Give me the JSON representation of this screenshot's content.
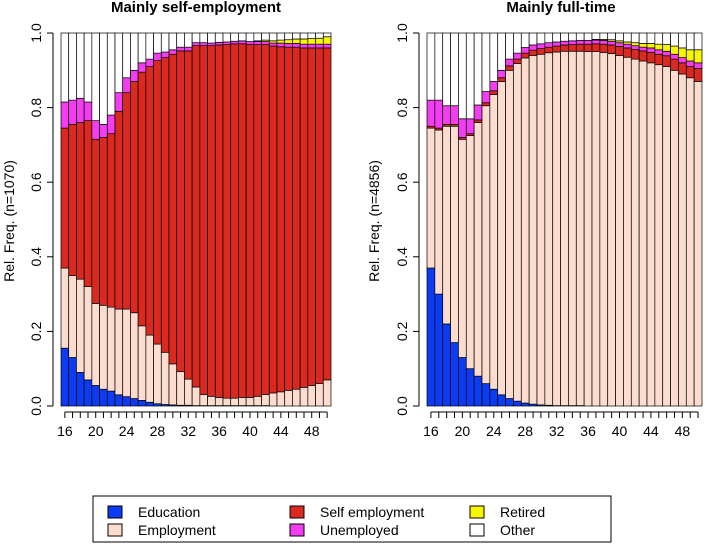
{
  "chart_data": [
    {
      "type": "bar",
      "stacked": true,
      "title": "Mainly self-employment",
      "ylabel": "Rel. Freq. (n=1070)",
      "xlabel": "",
      "ylim": [
        0,
        1
      ],
      "yticks": [
        "0.0",
        "0.2",
        "0.4",
        "0.6",
        "0.8",
        "1.0"
      ],
      "xtick_labels": [
        "16",
        "20",
        "24",
        "28",
        "32",
        "36",
        "40",
        "44",
        "48"
      ],
      "categories": [
        16,
        17,
        18,
        19,
        20,
        21,
        22,
        23,
        24,
        25,
        26,
        27,
        28,
        29,
        30,
        31,
        32,
        33,
        34,
        35,
        36,
        37,
        38,
        39,
        40,
        41,
        42,
        43,
        44,
        45,
        46,
        47,
        48,
        49,
        50
      ],
      "series": [
        {
          "name": "Education",
          "values": [
            0.155,
            0.13,
            0.09,
            0.07,
            0.055,
            0.045,
            0.04,
            0.03,
            0.025,
            0.02,
            0.015,
            0.01,
            0.006,
            0.004,
            0.003,
            0.002,
            0.002,
            0.001,
            0.001,
            0.001,
            0.001,
            0.001,
            0.001,
            0.001,
            0.001,
            0.001,
            0.001,
            0,
            0,
            0,
            0,
            0,
            0,
            0,
            0
          ]
        },
        {
          "name": "Employment",
          "values": [
            0.215,
            0.22,
            0.25,
            0.25,
            0.22,
            0.225,
            0.225,
            0.23,
            0.235,
            0.23,
            0.2,
            0.18,
            0.16,
            0.14,
            0.11,
            0.09,
            0.07,
            0.05,
            0.03,
            0.025,
            0.022,
            0.02,
            0.02,
            0.022,
            0.022,
            0.025,
            0.03,
            0.035,
            0.038,
            0.042,
            0.045,
            0.05,
            0.055,
            0.06,
            0.07
          ]
        },
        {
          "name": "Self employment",
          "values": [
            0.375,
            0.405,
            0.42,
            0.445,
            0.44,
            0.45,
            0.465,
            0.53,
            0.58,
            0.62,
            0.68,
            0.72,
            0.76,
            0.79,
            0.83,
            0.86,
            0.88,
            0.915,
            0.935,
            0.94,
            0.945,
            0.948,
            0.95,
            0.948,
            0.946,
            0.943,
            0.938,
            0.93,
            0.925,
            0.92,
            0.917,
            0.91,
            0.905,
            0.9,
            0.89
          ]
        },
        {
          "name": "Unemployed",
          "values": [
            0.07,
            0.065,
            0.065,
            0.05,
            0.05,
            0.035,
            0.05,
            0.05,
            0.04,
            0.03,
            0.025,
            0.02,
            0.02,
            0.015,
            0.012,
            0.01,
            0.01,
            0.008,
            0.008,
            0.007,
            0.007,
            0.007,
            0.007,
            0.008,
            0.008,
            0.008,
            0.008,
            0.008,
            0.01,
            0.01,
            0.01,
            0.01,
            0.01,
            0.01,
            0.01
          ]
        },
        {
          "name": "Retired",
          "values": [
            0,
            0,
            0,
            0,
            0,
            0,
            0,
            0,
            0,
            0,
            0,
            0,
            0,
            0,
            0,
            0,
            0,
            0,
            0,
            0,
            0,
            0,
            0,
            0,
            0,
            0.002,
            0.004,
            0.006,
            0.008,
            0.01,
            0.012,
            0.014,
            0.015,
            0.016,
            0.02
          ]
        },
        {
          "name": "Other",
          "values": [
            0.185,
            0.18,
            0.175,
            0.185,
            0.235,
            0.245,
            0.22,
            0.16,
            0.12,
            0.1,
            0.08,
            0.07,
            0.054,
            0.051,
            0.045,
            0.038,
            0.038,
            0.026,
            0.026,
            0.027,
            0.025,
            0.024,
            0.022,
            0.021,
            0.023,
            0.021,
            0.019,
            0.021,
            0.019,
            0.018,
            0.016,
            0.016,
            0.015,
            0.014,
            0.01
          ]
        }
      ]
    },
    {
      "type": "bar",
      "stacked": true,
      "title": "Mainly full-time",
      "ylabel": "Rel. Freq. (n=4856)",
      "xlabel": "",
      "ylim": [
        0,
        1
      ],
      "yticks": [
        "0.0",
        "0.2",
        "0.4",
        "0.6",
        "0.8",
        "1.0"
      ],
      "xtick_labels": [
        "16",
        "20",
        "24",
        "28",
        "32",
        "36",
        "40",
        "44",
        "48"
      ],
      "categories": [
        16,
        17,
        18,
        19,
        20,
        21,
        22,
        23,
        24,
        25,
        26,
        27,
        28,
        29,
        30,
        31,
        32,
        33,
        34,
        35,
        36,
        37,
        38,
        39,
        40,
        41,
        42,
        43,
        44,
        45,
        46,
        47,
        48,
        49,
        50
      ],
      "series": [
        {
          "name": "Education",
          "values": [
            0.37,
            0.3,
            0.22,
            0.17,
            0.13,
            0.1,
            0.08,
            0.06,
            0.045,
            0.03,
            0.02,
            0.013,
            0.008,
            0.005,
            0.003,
            0.002,
            0.001,
            0.001,
            0.001,
            0.001,
            0,
            0,
            0,
            0,
            0,
            0,
            0,
            0,
            0,
            0,
            0,
            0,
            0,
            0,
            0
          ]
        },
        {
          "name": "Employment",
          "values": [
            0.375,
            0.44,
            0.53,
            0.58,
            0.585,
            0.625,
            0.68,
            0.745,
            0.79,
            0.84,
            0.88,
            0.905,
            0.925,
            0.935,
            0.94,
            0.945,
            0.948,
            0.95,
            0.95,
            0.95,
            0.95,
            0.95,
            0.948,
            0.945,
            0.94,
            0.935,
            0.93,
            0.925,
            0.92,
            0.915,
            0.91,
            0.9,
            0.89,
            0.88,
            0.87
          ]
        },
        {
          "name": "Self employment",
          "values": [
            0.005,
            0.005,
            0.005,
            0.005,
            0.005,
            0.005,
            0.007,
            0.008,
            0.01,
            0.01,
            0.012,
            0.012,
            0.013,
            0.014,
            0.015,
            0.015,
            0.016,
            0.017,
            0.018,
            0.019,
            0.02,
            0.021,
            0.022,
            0.023,
            0.024,
            0.025,
            0.026,
            0.027,
            0.028,
            0.028,
            0.029,
            0.03,
            0.03,
            0.03,
            0.035
          ]
        },
        {
          "name": "Unemployed",
          "values": [
            0.07,
            0.075,
            0.05,
            0.05,
            0.05,
            0.04,
            0.04,
            0.03,
            0.025,
            0.02,
            0.018,
            0.016,
            0.015,
            0.014,
            0.013,
            0.012,
            0.011,
            0.01,
            0.01,
            0.01,
            0.01,
            0.01,
            0.01,
            0.01,
            0.01,
            0.01,
            0.01,
            0.01,
            0.012,
            0.012,
            0.012,
            0.013,
            0.014,
            0.015,
            0.015
          ]
        },
        {
          "name": "Retired",
          "values": [
            0,
            0,
            0,
            0,
            0,
            0,
            0,
            0,
            0,
            0,
            0,
            0,
            0,
            0,
            0,
            0,
            0,
            0,
            0,
            0,
            0,
            0.002,
            0.003,
            0.004,
            0.005,
            0.006,
            0.008,
            0.01,
            0.012,
            0.015,
            0.018,
            0.022,
            0.026,
            0.03,
            0.035
          ]
        },
        {
          "name": "Other",
          "values": [
            0.18,
            0.18,
            0.195,
            0.195,
            0.23,
            0.23,
            0.193,
            0.157,
            0.13,
            0.1,
            0.07,
            0.054,
            0.039,
            0.032,
            0.029,
            0.026,
            0.024,
            0.022,
            0.021,
            0.02,
            0.02,
            0.017,
            0.017,
            0.018,
            0.021,
            0.024,
            0.026,
            0.028,
            0.028,
            0.03,
            0.031,
            0.035,
            0.04,
            0.045,
            0.045
          ]
        }
      ]
    }
  ],
  "legend": {
    "items": [
      {
        "label": "Education",
        "color": "#0b3cf2"
      },
      {
        "label": "Employment",
        "color": "#fbdccf"
      },
      {
        "label": "Self employment",
        "color": "#da2a20"
      },
      {
        "label": "Unemployed",
        "color": "#f23ef0"
      },
      {
        "label": "Retired",
        "color": "#f8f500"
      },
      {
        "label": "Other",
        "color": "#ffffff"
      }
    ]
  },
  "colors": {
    "Education": "#0b3cf2",
    "Employment": "#fbdccf",
    "Self employment": "#da2a20",
    "Unemployed": "#f23ef0",
    "Retired": "#f8f500",
    "Other": "#ffffff"
  }
}
